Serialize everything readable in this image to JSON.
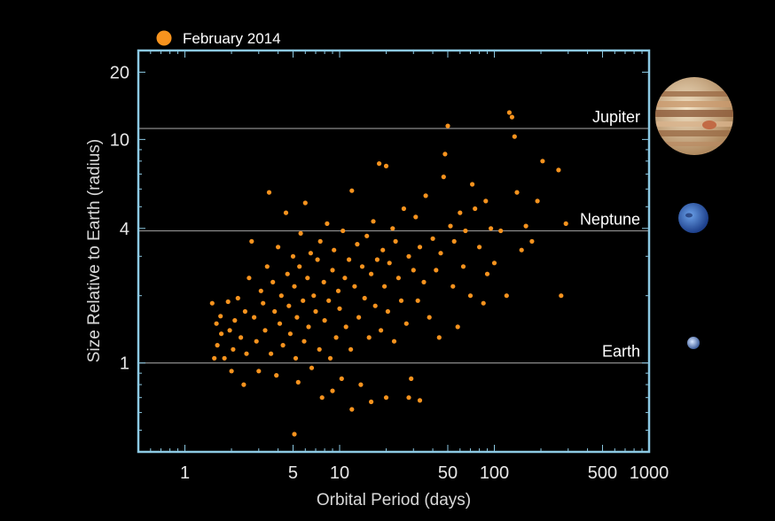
{
  "colors": {
    "background": "#000000",
    "frame": "#8cc9e3",
    "point": "#f7931e",
    "reference_line": "#8a8a8a",
    "text": "#e6e6e6"
  },
  "chart_data": {
    "type": "scatter",
    "title": "",
    "xlabel": "Orbital Period (days)",
    "ylabel": "Size Relative to Earth (radius)",
    "xscale": "log",
    "yscale": "log",
    "xlim": [
      0.5,
      1000
    ],
    "ylim": [
      0.4,
      25
    ],
    "x_ticks": [
      1,
      5,
      10,
      50,
      100,
      500,
      1000
    ],
    "x_tick_labels": [
      "1",
      "5",
      "10",
      "50",
      "100",
      "500",
      "1000"
    ],
    "y_ticks": [
      1,
      4,
      10,
      20
    ],
    "y_tick_labels": [
      "1",
      "4",
      "10",
      "20"
    ],
    "grid": false,
    "legend": {
      "position": "top-left",
      "entries": [
        {
          "label": "February 2014",
          "color": "#f7931e"
        }
      ]
    },
    "reference_lines": [
      {
        "label": "Jupiter",
        "y": 11.2,
        "icon": "jupiter-icon"
      },
      {
        "label": "Neptune",
        "y": 3.9,
        "icon": "neptune-icon"
      },
      {
        "label": "Earth",
        "y": 1.0,
        "icon": "earth-icon"
      }
    ],
    "series": [
      {
        "name": "February 2014",
        "color": "#f7931e",
        "note_points": "representative sample read from the figure",
        "points": [
          [
            5.1,
            0.48
          ],
          [
            12,
            0.62
          ],
          [
            9,
            0.75
          ],
          [
            16,
            0.67
          ],
          [
            33,
            0.68
          ],
          [
            20,
            0.7
          ],
          [
            28,
            0.7
          ],
          [
            1.5,
            1.85
          ],
          [
            1.55,
            1.05
          ],
          [
            1.6,
            1.5
          ],
          [
            1.62,
            1.2
          ],
          [
            1.7,
            1.62
          ],
          [
            1.72,
            1.35
          ],
          [
            1.8,
            1.05
          ],
          [
            1.9,
            1.88
          ],
          [
            1.95,
            1.4
          ],
          [
            2.0,
            0.92
          ],
          [
            2.05,
            1.15
          ],
          [
            2.1,
            1.55
          ],
          [
            2.2,
            1.95
          ],
          [
            2.3,
            1.3
          ],
          [
            2.4,
            0.8
          ],
          [
            2.45,
            1.7
          ],
          [
            2.5,
            1.1
          ],
          [
            2.6,
            2.4
          ],
          [
            2.7,
            3.5
          ],
          [
            2.8,
            1.6
          ],
          [
            2.9,
            1.25
          ],
          [
            3.0,
            0.92
          ],
          [
            3.1,
            2.1
          ],
          [
            3.2,
            1.85
          ],
          [
            3.3,
            1.4
          ],
          [
            3.4,
            2.7
          ],
          [
            3.5,
            5.8
          ],
          [
            3.6,
            1.1
          ],
          [
            3.7,
            2.3
          ],
          [
            3.8,
            1.7
          ],
          [
            3.9,
            0.88
          ],
          [
            4.0,
            3.3
          ],
          [
            4.1,
            1.5
          ],
          [
            4.2,
            2.0
          ],
          [
            4.3,
            1.2
          ],
          [
            4.5,
            4.7
          ],
          [
            4.6,
            2.5
          ],
          [
            4.7,
            1.8
          ],
          [
            4.8,
            1.35
          ],
          [
            5.0,
            3.0
          ],
          [
            5.1,
            2.2
          ],
          [
            5.2,
            1.05
          ],
          [
            5.3,
            1.6
          ],
          [
            5.4,
            0.82
          ],
          [
            5.5,
            2.7
          ],
          [
            5.6,
            3.8
          ],
          [
            5.8,
            1.9
          ],
          [
            5.9,
            1.25
          ],
          [
            6.0,
            5.2
          ],
          [
            6.2,
            2.4
          ],
          [
            6.3,
            1.45
          ],
          [
            6.5,
            3.1
          ],
          [
            6.6,
            0.95
          ],
          [
            6.8,
            2.0
          ],
          [
            7.0,
            1.7
          ],
          [
            7.2,
            2.9
          ],
          [
            7.4,
            1.15
          ],
          [
            7.5,
            3.5
          ],
          [
            7.7,
            0.7
          ],
          [
            7.9,
            2.3
          ],
          [
            8.0,
            1.55
          ],
          [
            8.3,
            4.2
          ],
          [
            8.5,
            1.9
          ],
          [
            8.7,
            1.05
          ],
          [
            9.0,
            2.6
          ],
          [
            9.2,
            3.2
          ],
          [
            9.5,
            1.3
          ],
          [
            9.8,
            2.1
          ],
          [
            10.0,
            1.75
          ],
          [
            10.3,
            0.85
          ],
          [
            10.5,
            3.9
          ],
          [
            10.8,
            2.4
          ],
          [
            11.0,
            1.45
          ],
          [
            11.5,
            2.9
          ],
          [
            11.8,
            1.15
          ],
          [
            12.0,
            5.9
          ],
          [
            12.5,
            2.2
          ],
          [
            13.0,
            3.4
          ],
          [
            13.3,
            1.6
          ],
          [
            13.7,
            0.8
          ],
          [
            14.0,
            2.7
          ],
          [
            14.5,
            1.95
          ],
          [
            15.0,
            3.7
          ],
          [
            15.5,
            1.3
          ],
          [
            16.0,
            2.5
          ],
          [
            16.5,
            4.3
          ],
          [
            17.0,
            1.8
          ],
          [
            17.5,
            2.9
          ],
          [
            18.0,
            7.8
          ],
          [
            18.5,
            1.4
          ],
          [
            19.0,
            3.2
          ],
          [
            19.5,
            2.2
          ],
          [
            20.0,
            7.6
          ],
          [
            20.5,
            1.7
          ],
          [
            21.0,
            2.8
          ],
          [
            22.0,
            4.0
          ],
          [
            22.5,
            1.25
          ],
          [
            23.0,
            3.5
          ],
          [
            24.0,
            2.4
          ],
          [
            25.0,
            1.9
          ],
          [
            26.0,
            4.9
          ],
          [
            27.0,
            1.5
          ],
          [
            28.0,
            3.0
          ],
          [
            29.0,
            0.85
          ],
          [
            30.0,
            2.6
          ],
          [
            31.0,
            4.5
          ],
          [
            32.0,
            1.9
          ],
          [
            33.0,
            3.3
          ],
          [
            35.0,
            2.3
          ],
          [
            36.0,
            5.6
          ],
          [
            38.0,
            1.6
          ],
          [
            40.0,
            3.6
          ],
          [
            42.0,
            2.6
          ],
          [
            44.0,
            1.3
          ],
          [
            45.0,
            3.1
          ],
          [
            47.0,
            6.8
          ],
          [
            48.0,
            8.6
          ],
          [
            50.0,
            11.5
          ],
          [
            52.0,
            4.1
          ],
          [
            54.0,
            2.2
          ],
          [
            55.0,
            3.5
          ],
          [
            58.0,
            1.45
          ],
          [
            60.0,
            4.7
          ],
          [
            63.0,
            2.7
          ],
          [
            65.0,
            3.9
          ],
          [
            70.0,
            2.0
          ],
          [
            72.0,
            6.3
          ],
          [
            75.0,
            4.9
          ],
          [
            80.0,
            3.3
          ],
          [
            85.0,
            1.85
          ],
          [
            88.0,
            5.3
          ],
          [
            90.0,
            2.5
          ],
          [
            95.0,
            4.0
          ],
          [
            100.0,
            2.8
          ],
          [
            110.0,
            3.9
          ],
          [
            120.0,
            2.0
          ],
          [
            125.0,
            13.2
          ],
          [
            130.0,
            12.6
          ],
          [
            135.0,
            10.3
          ],
          [
            140.0,
            5.8
          ],
          [
            150.0,
            3.2
          ],
          [
            160.0,
            4.1
          ],
          [
            175.0,
            3.5
          ],
          [
            190.0,
            5.3
          ],
          [
            205.0,
            8.0
          ],
          [
            260.0,
            7.3
          ],
          [
            270.0,
            2.0
          ],
          [
            290.0,
            4.2
          ]
        ]
      }
    ]
  }
}
